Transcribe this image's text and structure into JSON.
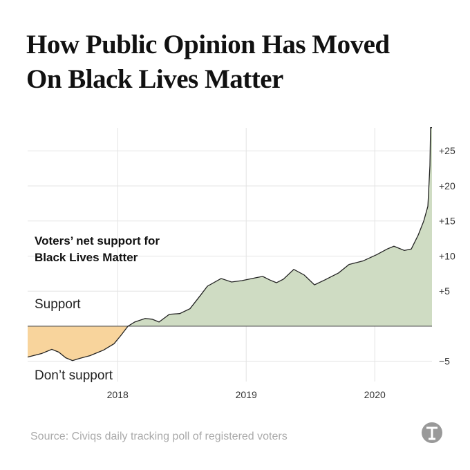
{
  "chart_data": {
    "type": "area",
    "title": [
      "How Public Opinion Has Moved",
      "On Black Lives Matter"
    ],
    "annotation": [
      "Voters’ net support for",
      "Black Lives Matter"
    ],
    "positive_label": "Support",
    "negative_label": "Don’t support",
    "source": "Source: Civiqs daily tracking poll of registered voters",
    "x": [
      2017.3,
      2017.408,
      2017.488,
      2017.542,
      2017.596,
      2017.649,
      2017.703,
      2017.784,
      2017.891,
      2017.972,
      2018.026,
      2018.08,
      2018.133,
      2018.214,
      2018.268,
      2018.322,
      2018.402,
      2018.483,
      2018.563,
      2018.644,
      2018.698,
      2018.805,
      2018.886,
      2018.967,
      2019.074,
      2019.128,
      2019.182,
      2019.235,
      2019.289,
      2019.37,
      2019.451,
      2019.531,
      2019.612,
      2019.719,
      2019.8,
      2019.908,
      2020.015,
      2020.096,
      2020.149,
      2020.23,
      2020.284,
      2020.338,
      2020.381,
      2020.413,
      2020.429,
      2020.434,
      2020.445
    ],
    "values": [
      -4.4,
      -3.9,
      -3.3,
      -3.7,
      -4.5,
      -4.9,
      -4.6,
      -4.2,
      -3.4,
      -2.5,
      -1.3,
      0,
      0.6,
      1.1,
      1.0,
      0.6,
      1.7,
      1.8,
      2.5,
      4.4,
      5.7,
      6.8,
      6.3,
      6.5,
      6.9,
      7.1,
      6.6,
      6.2,
      6.7,
      8.1,
      7.3,
      5.9,
      6.6,
      7.6,
      8.8,
      9.3,
      10.2,
      11.0,
      11.4,
      10.8,
      11.0,
      13.0,
      15.0,
      17.1,
      22.9,
      28.3,
      28.3
    ],
    "xlim": [
      2017.3,
      2020.445
    ],
    "xticks": [
      2018,
      2019,
      2020
    ],
    "ylim": [
      -7,
      29
    ],
    "yticks": [
      {
        "value": -5,
        "label": "−5"
      },
      {
        "value": 5,
        "label": "+5"
      },
      {
        "value": 10,
        "label": "+10"
      },
      {
        "value": 15,
        "label": "+15"
      },
      {
        "value": 20,
        "label": "+20"
      },
      {
        "value": 25,
        "label": "+25"
      }
    ],
    "grid": true,
    "positive_color": "#cfdcc3",
    "negative_color": "#f8d49c",
    "line_color": "#222222"
  }
}
